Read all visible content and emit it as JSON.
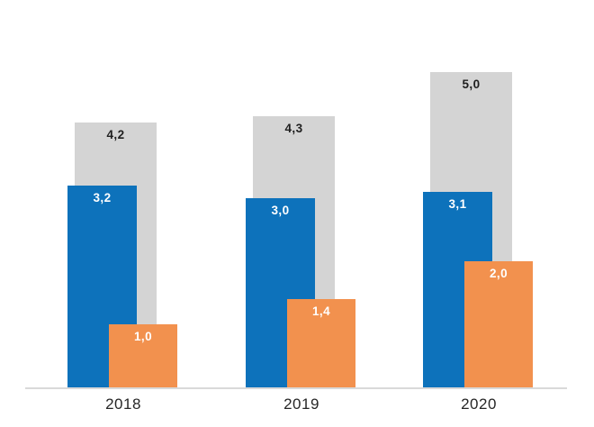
{
  "chart_data": {
    "type": "bar",
    "title": "",
    "categories": [
      "2018",
      "2019",
      "2020"
    ],
    "series": [
      {
        "name": "gray",
        "color": "#d4d4d4",
        "label_color": "#1f1f1f",
        "values": [
          4.2,
          4.3,
          5.0
        ],
        "labels": [
          "4,2",
          "4,3",
          "5,0"
        ]
      },
      {
        "name": "blue",
        "color": "#0d72bb",
        "label_color": "#ffffff",
        "values": [
          3.2,
          3.0,
          3.1
        ],
        "labels": [
          "3,2",
          "3,0",
          "3,1"
        ]
      },
      {
        "name": "orange",
        "color": "#f2914e",
        "label_color": "#ffffff",
        "values": [
          1.0,
          1.4,
          2.0
        ],
        "labels": [
          "1,0",
          "1,4",
          "2,0"
        ]
      }
    ],
    "ylim": [
      0,
      5.5
    ],
    "decimal_separator": ",",
    "legend": "none",
    "grid": false,
    "layout": "grouped-overlapping-bars",
    "axis_line_color": "#d9d9d9",
    "category_label_color": "#262626",
    "background_color": "#ffffff"
  }
}
